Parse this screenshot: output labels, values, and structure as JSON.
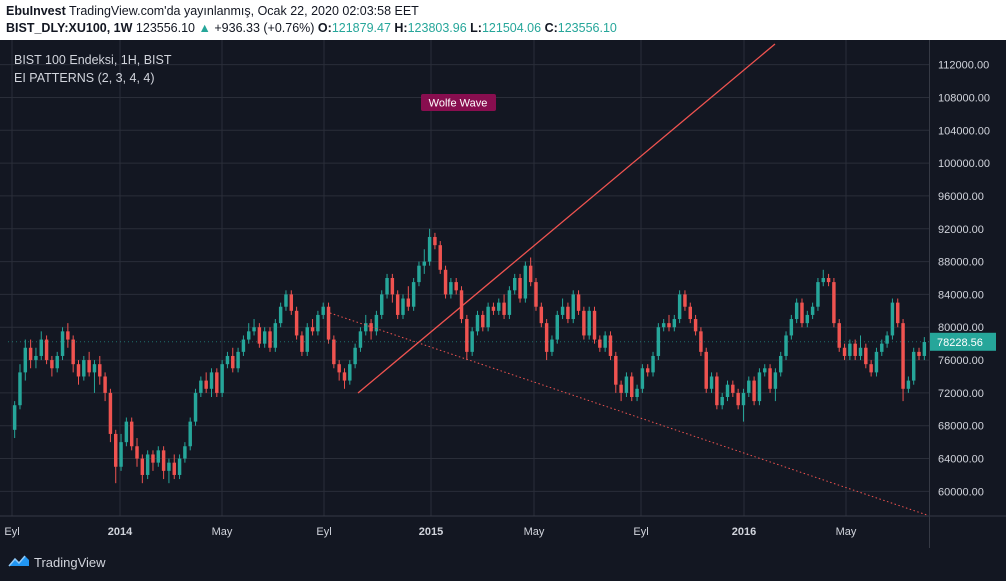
{
  "header": {
    "author": "EbuInvest",
    "published": "TradingView.com'da yayınlanmış, Ocak 22, 2020 02:03:58 EET",
    "symbol": "BIST_DLY:XU100, 1W",
    "price": "123556.10",
    "change_arrow": "▲",
    "change": "+936.33 (+0.76%)",
    "o_label": "O:",
    "o_value": "121879.47",
    "h_label": "H:",
    "h_value": "123803.96",
    "l_label": "L:",
    "l_value": "121504.06",
    "c_label": "C:",
    "c_value": "123556.10"
  },
  "legend": {
    "series": "BIST 100 Endeksi, 1H, BIST",
    "indicator": "EI PATTERNS (2, 3, 4, 4)"
  },
  "annotation": {
    "label": "Wolfe Wave"
  },
  "price_badge": "78228.56",
  "footer": {
    "brand": "TradingView"
  },
  "colors": {
    "background": "#131722",
    "grid": "#2a2e39",
    "up": "#26a69a",
    "down": "#ef5350",
    "trendline": "#ef5350",
    "annotation_bg": "#880e4f",
    "badge_bg": "#26a69a",
    "text": "#d1d4dc"
  },
  "chart_data": {
    "type": "candlestick",
    "y_ticks": [
      112000,
      108000,
      104000,
      100000,
      96000,
      92000,
      88000,
      84000,
      80000,
      76000,
      72000,
      68000,
      64000,
      60000
    ],
    "y_tick_labels": [
      "112000.00",
      "108000.00",
      "104000.00",
      "100000.00",
      "96000.00",
      "92000.00",
      "88000.00",
      "84000.00",
      "80000.00",
      "76000.00",
      "72000.00",
      "68000.00",
      "64000.00",
      "60000.00"
    ],
    "x_tick_labels": [
      "Eyl",
      "2014",
      "May",
      "Eyl",
      "2015",
      "May",
      "Eyl",
      "2016",
      "May"
    ],
    "x_tick_bold": [
      false,
      true,
      false,
      false,
      true,
      false,
      false,
      true,
      false
    ],
    "ylim": [
      57000,
      115000
    ],
    "candles_approx": [
      [
        67500,
        70500,
        66500,
        71000
      ],
      [
        70500,
        74500,
        70000,
        75500
      ],
      [
        74500,
        77500,
        73500,
        78500
      ],
      [
        77500,
        76000,
        75000,
        78500
      ],
      [
        76000,
        76500,
        75000,
        77500
      ],
      [
        76500,
        78500,
        76000,
        79500
      ],
      [
        78500,
        76000,
        75500,
        79000
      ],
      [
        76000,
        75000,
        74000,
        76500
      ],
      [
        75000,
        76500,
        74500,
        77000
      ],
      [
        76500,
        79500,
        76000,
        80000
      ],
      [
        79500,
        78500,
        77500,
        80500
      ],
      [
        78500,
        75500,
        74500,
        79000
      ],
      [
        75500,
        74000,
        73000,
        76000
      ],
      [
        74000,
        76000,
        73500,
        76500
      ],
      [
        76000,
        74500,
        74000,
        77000
      ],
      [
        74500,
        75500,
        72000,
        76000
      ],
      [
        75500,
        74000,
        73000,
        76500
      ],
      [
        74000,
        72000,
        71000,
        74500
      ],
      [
        72000,
        67000,
        66000,
        72500
      ],
      [
        67000,
        63000,
        61000,
        67500
      ],
      [
        63000,
        66000,
        62500,
        67000
      ],
      [
        66000,
        68500,
        65500,
        69000
      ],
      [
        68500,
        65500,
        65000,
        69000
      ],
      [
        65500,
        64000,
        63000,
        66500
      ],
      [
        64000,
        62000,
        61000,
        64500
      ],
      [
        62000,
        64500,
        61500,
        65000
      ],
      [
        64500,
        63500,
        62500,
        65000
      ],
      [
        63500,
        65000,
        63000,
        65500
      ],
      [
        65000,
        62500,
        61500,
        65500
      ],
      [
        62500,
        63500,
        61000,
        64000
      ],
      [
        63500,
        62000,
        61500,
        64500
      ],
      [
        62000,
        64000,
        61500,
        64500
      ],
      [
        64000,
        65500,
        63500,
        66000
      ],
      [
        65500,
        68500,
        65000,
        69000
      ],
      [
        68500,
        72000,
        68000,
        72500
      ],
      [
        72000,
        73500,
        71500,
        74000
      ],
      [
        73500,
        72500,
        72000,
        74500
      ],
      [
        72500,
        74500,
        71500,
        75000
      ],
      [
        74500,
        72000,
        71500,
        75000
      ],
      [
        72000,
        75500,
        71500,
        76000
      ],
      [
        75500,
        76500,
        75000,
        77000
      ],
      [
        76500,
        75000,
        74500,
        77500
      ],
      [
        75000,
        77000,
        74500,
        77500
      ],
      [
        77000,
        78500,
        76500,
        79000
      ],
      [
        78500,
        79500,
        78000,
        80500
      ],
      [
        79500,
        80000,
        79000,
        81000
      ],
      [
        80000,
        78000,
        77500,
        80500
      ],
      [
        78000,
        79500,
        77500,
        80000
      ],
      [
        79500,
        77500,
        77000,
        80000
      ],
      [
        77500,
        80500,
        77000,
        81000
      ],
      [
        80500,
        82500,
        80000,
        83000
      ],
      [
        82500,
        84000,
        82000,
        84500
      ],
      [
        84000,
        82000,
        81500,
        84500
      ],
      [
        82000,
        79000,
        78500,
        82500
      ],
      [
        79000,
        77000,
        76500,
        79500
      ],
      [
        77000,
        80000,
        76500,
        80500
      ],
      [
        80000,
        79500,
        79000,
        81000
      ],
      [
        79500,
        81500,
        79000,
        82000
      ],
      [
        81500,
        82500,
        81000,
        83000
      ],
      [
        82500,
        78500,
        78000,
        83000
      ],
      [
        78500,
        75500,
        75000,
        79000
      ],
      [
        75500,
        74500,
        73500,
        76000
      ],
      [
        74500,
        73500,
        72500,
        75000
      ],
      [
        73500,
        75500,
        73000,
        76000
      ],
      [
        75500,
        77500,
        75000,
        78000
      ],
      [
        77500,
        79500,
        77000,
        80000
      ],
      [
        79500,
        80500,
        79000,
        81500
      ],
      [
        80500,
        79500,
        78500,
        81000
      ],
      [
        79500,
        81500,
        79000,
        82000
      ],
      [
        81500,
        84000,
        81000,
        84500
      ],
      [
        84000,
        86000,
        83500,
        86500
      ],
      [
        86000,
        84000,
        83000,
        86500
      ],
      [
        84000,
        81500,
        81000,
        84500
      ],
      [
        81500,
        83500,
        81000,
        84000
      ],
      [
        83500,
        82500,
        82000,
        85000
      ],
      [
        82500,
        85500,
        82000,
        86000
      ],
      [
        85500,
        87500,
        85000,
        88000
      ],
      [
        87500,
        88000,
        86500,
        89500
      ],
      [
        88000,
        91000,
        87500,
        92000
      ],
      [
        91000,
        90000,
        89500,
        91500
      ],
      [
        90000,
        87000,
        86500,
        90500
      ],
      [
        87000,
        84000,
        83500,
        87500
      ],
      [
        84000,
        85500,
        83500,
        86000
      ],
      [
        85500,
        84500,
        84000,
        86000
      ],
      [
        84500,
        81000,
        80500,
        85000
      ],
      [
        81000,
        77000,
        76000,
        81500
      ],
      [
        77000,
        79500,
        76500,
        80000
      ],
      [
        79500,
        81500,
        79000,
        82000
      ],
      [
        81500,
        80000,
        79500,
        82000
      ],
      [
        80000,
        82500,
        79500,
        83000
      ],
      [
        82500,
        82000,
        81500,
        83000
      ],
      [
        82000,
        83000,
        81500,
        83500
      ],
      [
        83000,
        81500,
        81000,
        84000
      ],
      [
        81500,
        84500,
        81000,
        85000
      ],
      [
        84500,
        86000,
        84000,
        86500
      ],
      [
        86000,
        83500,
        83000,
        86500
      ],
      [
        83500,
        87500,
        83000,
        88000
      ],
      [
        87500,
        85500,
        85000,
        88500
      ],
      [
        85500,
        82500,
        82000,
        86000
      ],
      [
        82500,
        80500,
        80000,
        83000
      ],
      [
        80500,
        77000,
        76000,
        81000
      ],
      [
        77000,
        78500,
        76500,
        79000
      ],
      [
        78500,
        81500,
        78000,
        82000
      ],
      [
        81500,
        82500,
        81000,
        83500
      ],
      [
        82500,
        81000,
        80500,
        83000
      ],
      [
        81000,
        84000,
        80500,
        84500
      ],
      [
        84000,
        82000,
        81500,
        84500
      ],
      [
        82000,
        79000,
        78500,
        82500
      ],
      [
        79000,
        82000,
        78500,
        82500
      ],
      [
        82000,
        78500,
        78000,
        82500
      ],
      [
        78500,
        77500,
        77000,
        79000
      ],
      [
        77500,
        79000,
        77000,
        79500
      ],
      [
        79000,
        76500,
        76000,
        79500
      ],
      [
        76500,
        73000,
        72000,
        77000
      ],
      [
        73000,
        72000,
        71000,
        73500
      ],
      [
        72000,
        74000,
        71500,
        74500
      ],
      [
        74000,
        71500,
        71000,
        74500
      ],
      [
        71500,
        72500,
        71000,
        73000
      ],
      [
        72500,
        75000,
        72000,
        75500
      ],
      [
        75000,
        74500,
        74000,
        75500
      ],
      [
        74500,
        76500,
        74000,
        77000
      ],
      [
        76500,
        80000,
        76000,
        80500
      ],
      [
        80000,
        80500,
        79500,
        81000
      ],
      [
        80500,
        80000,
        79500,
        81500
      ],
      [
        80000,
        81000,
        79500,
        81500
      ],
      [
        81000,
        84000,
        80500,
        84500
      ],
      [
        84000,
        82500,
        82000,
        84500
      ],
      [
        82500,
        81000,
        80500,
        83000
      ],
      [
        81000,
        79500,
        79000,
        81500
      ],
      [
        79500,
        77000,
        76500,
        80000
      ],
      [
        77000,
        72500,
        72000,
        77500
      ],
      [
        72500,
        74000,
        72000,
        74500
      ],
      [
        74000,
        70500,
        70000,
        74500
      ],
      [
        70500,
        71500,
        70000,
        72000
      ],
      [
        71500,
        73000,
        71000,
        73500
      ],
      [
        73000,
        72000,
        71500,
        73500
      ],
      [
        72000,
        70500,
        70000,
        72500
      ],
      [
        70500,
        72000,
        68500,
        72500
      ],
      [
        72000,
        73500,
        71500,
        74000
      ],
      [
        73500,
        71000,
        70500,
        74000
      ],
      [
        71000,
        74500,
        70500,
        75000
      ],
      [
        74500,
        75000,
        74000,
        75500
      ],
      [
        75000,
        72500,
        72000,
        75500
      ],
      [
        72500,
        74500,
        71000,
        75000
      ],
      [
        74500,
        76500,
        74000,
        77000
      ],
      [
        76500,
        79000,
        76000,
        79500
      ],
      [
        79000,
        81000,
        78500,
        81500
      ],
      [
        81000,
        83000,
        80500,
        83500
      ],
      [
        83000,
        80500,
        80000,
        83500
      ],
      [
        80500,
        81500,
        80000,
        82000
      ],
      [
        81500,
        82500,
        81000,
        83000
      ],
      [
        82500,
        85500,
        82000,
        86000
      ],
      [
        85500,
        86000,
        85000,
        87000
      ],
      [
        86000,
        85500,
        85000,
        86500
      ],
      [
        85500,
        80500,
        80000,
        86000
      ],
      [
        80500,
        77500,
        77000,
        81000
      ],
      [
        77500,
        76500,
        76000,
        78000
      ],
      [
        76500,
        78000,
        76000,
        78500
      ],
      [
        78000,
        76500,
        76000,
        78500
      ],
      [
        76500,
        77500,
        76000,
        79000
      ],
      [
        77500,
        75500,
        75000,
        78000
      ],
      [
        75500,
        74500,
        74000,
        76000
      ],
      [
        74500,
        77000,
        74000,
        77500
      ],
      [
        77000,
        78000,
        76500,
        78500
      ],
      [
        78000,
        79000,
        77500,
        79500
      ],
      [
        79000,
        83000,
        78500,
        83500
      ],
      [
        83000,
        80500,
        80000,
        83500
      ],
      [
        80500,
        72500,
        71000,
        81000
      ],
      [
        72500,
        73500,
        72000,
        74000
      ],
      [
        73500,
        77000,
        73000,
        77500
      ],
      [
        77000,
        76500,
        76000,
        77500
      ],
      [
        76500,
        78200,
        76000,
        78800
      ]
    ],
    "trendline_up": {
      "from": [
        1,
        72500
      ],
      "to": [
        2,
        113000
      ]
    },
    "trendline_down_dotted": {
      "from": [
        1,
        82500
      ],
      "to": [
        2,
        58500
      ]
    }
  }
}
